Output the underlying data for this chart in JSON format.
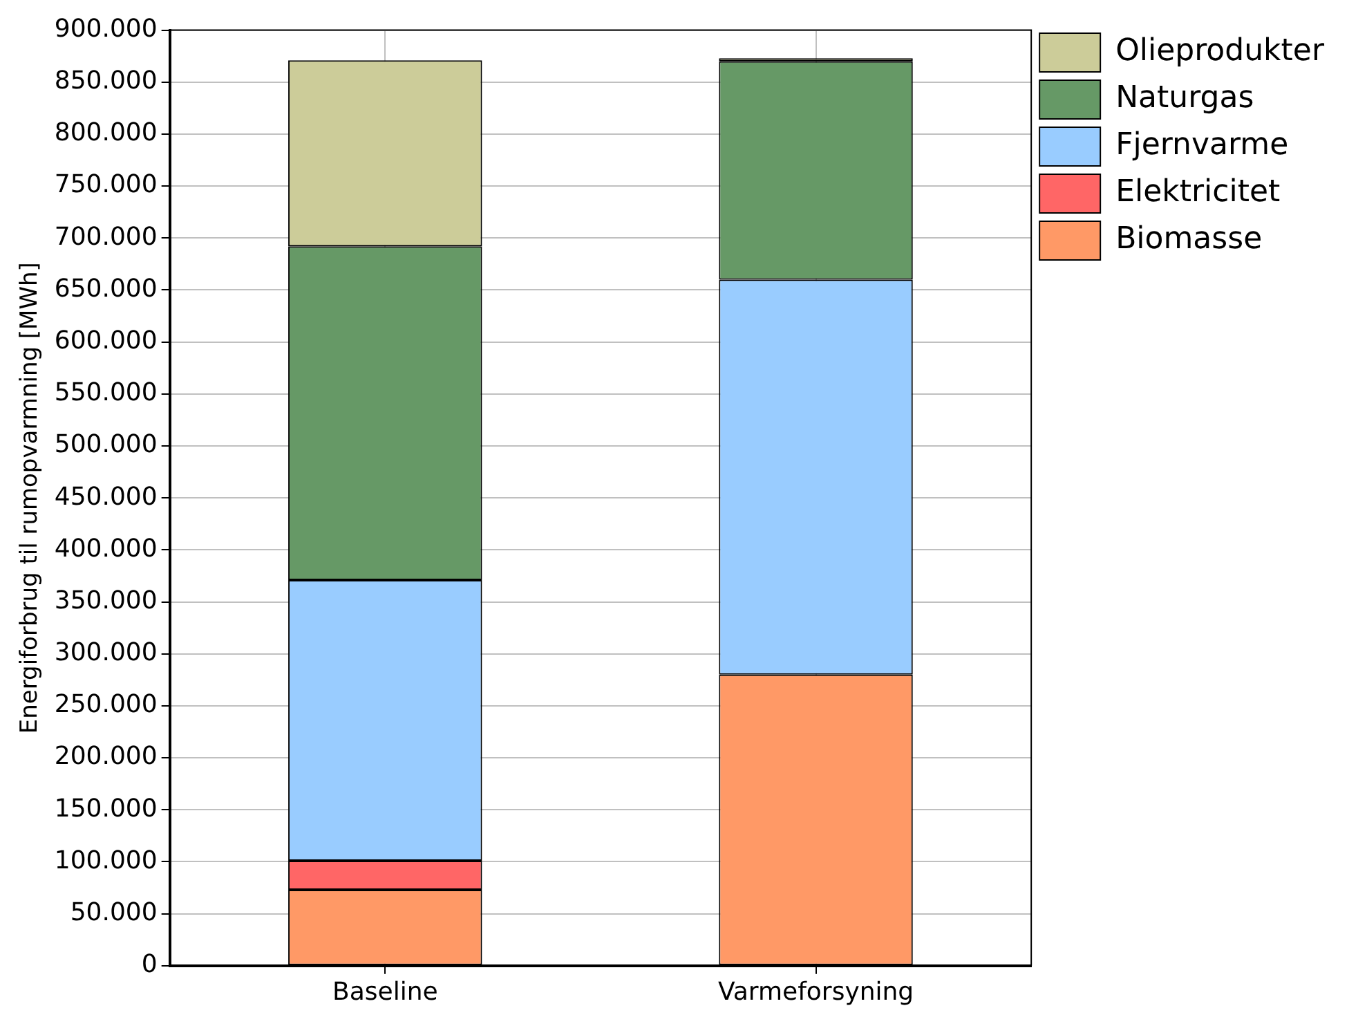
{
  "chart_data": {
    "type": "bar",
    "stacked": true,
    "ylabel": "Energiforbrug til rumopvarmning [MWh]",
    "categories": [
      "Baseline",
      "Varmeforsyning"
    ],
    "series": [
      {
        "name": "Biomasse",
        "color": "#ff9966",
        "values": [
          73000,
          280000
        ]
      },
      {
        "name": "Elektricitet",
        "color": "#ff6666",
        "values": [
          28000,
          null
        ]
      },
      {
        "name": "Fjernvarme",
        "color": "#99ccff",
        "values": [
          270000,
          380000
        ]
      },
      {
        "name": "Naturgas",
        "color": "#669966",
        "values": [
          321000,
          210000
        ]
      },
      {
        "name": "Olieprodukter",
        "color": "#cccc99",
        "values": [
          179000,
          3000
        ]
      }
    ],
    "ylim": [
      0,
      900000
    ],
    "yticks": [
      {
        "value": 0,
        "label": "0"
      },
      {
        "value": 50000,
        "label": "50.000"
      },
      {
        "value": 100000,
        "label": "100.000"
      },
      {
        "value": 150000,
        "label": "150.000"
      },
      {
        "value": 200000,
        "label": "200.000"
      },
      {
        "value": 250000,
        "label": "250.000"
      },
      {
        "value": 300000,
        "label": "300.000"
      },
      {
        "value": 350000,
        "label": "350.000"
      },
      {
        "value": 400000,
        "label": "400.000"
      },
      {
        "value": 450000,
        "label": "450.000"
      },
      {
        "value": 500000,
        "label": "500.000"
      },
      {
        "value": 550000,
        "label": "550.000"
      },
      {
        "value": 600000,
        "label": "600.000"
      },
      {
        "value": 650000,
        "label": "650.000"
      },
      {
        "value": 700000,
        "label": "700.000"
      },
      {
        "value": 750000,
        "label": "750.000"
      },
      {
        "value": 800000,
        "label": "800.000"
      },
      {
        "value": 850000,
        "label": "850.000"
      },
      {
        "value": 900000,
        "label": "900.000"
      }
    ],
    "grid": true,
    "legend": "top right"
  }
}
